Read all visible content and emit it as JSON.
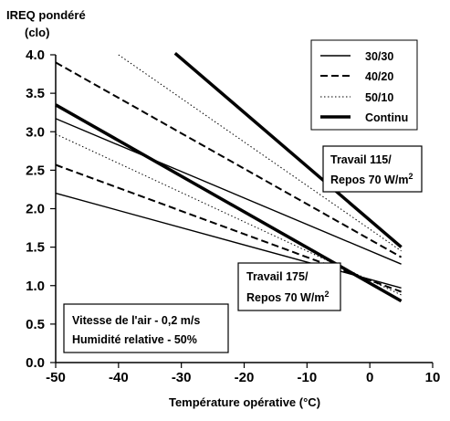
{
  "chart_data": {
    "type": "line",
    "title": "",
    "ylabel_line1": "IREQ pondéré",
    "ylabel_line2": "(clo)",
    "xlabel": "Température opérative (°C)",
    "xlim": [
      -50,
      10
    ],
    "ylim": [
      0,
      4.0
    ],
    "xticks": [
      -50,
      -40,
      -30,
      -20,
      -10,
      0,
      10
    ],
    "yticks": [
      "0.0",
      "0.5",
      "1.0",
      "1.5",
      "2.0",
      "2.5",
      "3.0",
      "3.5",
      "4.0"
    ],
    "grid": false,
    "legend_position": "top-right",
    "legend": [
      {
        "name": "30/30",
        "style": "solid-thin"
      },
      {
        "name": "40/20",
        "style": "dashed"
      },
      {
        "name": "50/10",
        "style": "dotted"
      },
      {
        "name": "Continu",
        "style": "solid-thick"
      }
    ],
    "series": [
      {
        "group": "Travail 115/Repos 70 W/m2",
        "style": "solid-thick",
        "x": [
          -31,
          5
        ],
        "y": [
          4.02,
          1.5
        ]
      },
      {
        "group": "Travail 115/Repos 70 W/m2",
        "style": "dotted",
        "x": [
          -40,
          5
        ],
        "y": [
          4.0,
          1.45
        ]
      },
      {
        "group": "Travail 115/Repos 70 W/m2",
        "style": "dashed",
        "x": [
          -50,
          5
        ],
        "y": [
          3.9,
          1.37
        ]
      },
      {
        "group": "Travail 115/Repos 70 W/m2",
        "style": "solid-thin",
        "x": [
          -50,
          5
        ],
        "y": [
          3.17,
          1.28
        ]
      },
      {
        "group": "Travail 175/Repos 70 W/m2",
        "style": "solid-thick",
        "x": [
          -50,
          5
        ],
        "y": [
          3.35,
          0.8
        ]
      },
      {
        "group": "Travail 175/Repos 70 W/m2",
        "style": "dotted",
        "x": [
          -50,
          5
        ],
        "y": [
          2.97,
          0.88
        ]
      },
      {
        "group": "Travail 175/Repos 70 W/m2",
        "style": "dashed",
        "x": [
          -50,
          5
        ],
        "y": [
          2.57,
          0.92
        ]
      },
      {
        "group": "Travail 175/Repos 70 W/m2",
        "style": "solid-thin",
        "x": [
          -50,
          5
        ],
        "y": [
          2.2,
          0.97
        ]
      }
    ],
    "annotations": {
      "upper_line1": "Travail 115/",
      "upper_line2": "Repos 70 W/m",
      "upper_sup": "2",
      "lower_line1": "Travail 175/",
      "lower_line2": "Repos 70 W/m",
      "lower_sup": "2",
      "conditions_line1": "Vitesse de l'air - 0,2 m/s",
      "conditions_line2": "Humidité relative - 50%"
    }
  }
}
